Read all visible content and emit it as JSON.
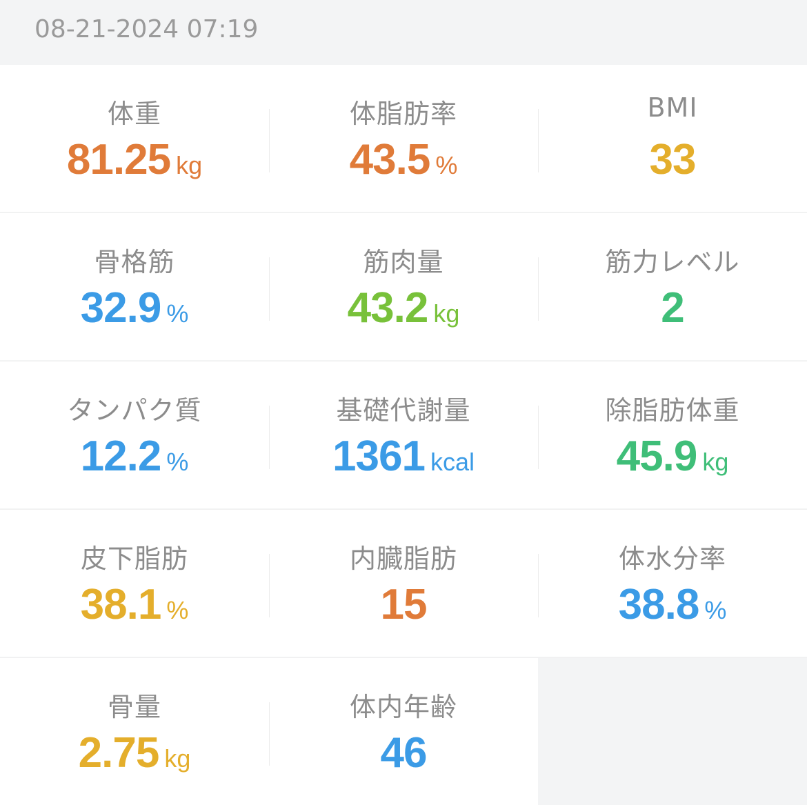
{
  "header": {
    "timestamp": "08-21-2024 07:19"
  },
  "colors": {
    "orange": "#e07b39",
    "yellow": "#e4ae2b",
    "blue": "#3b9be6",
    "light_green": "#78c13a",
    "green": "#3fbe78",
    "label_gray": "#8c8c8c",
    "background": "#f3f4f5"
  },
  "metrics": [
    {
      "label": "体重",
      "value": "81.25",
      "unit": "kg",
      "color": "#e07b39"
    },
    {
      "label": "体脂肪率",
      "value": "43.5",
      "unit": "%",
      "color": "#e07b39"
    },
    {
      "label": "BMI",
      "value": "33",
      "unit": "",
      "color": "#e4ae2b"
    },
    {
      "label": "骨格筋",
      "value": "32.9",
      "unit": "%",
      "color": "#3b9be6"
    },
    {
      "label": "筋肉量",
      "value": "43.2",
      "unit": "kg",
      "color": "#78c13a"
    },
    {
      "label": "筋力レベル",
      "value": "2",
      "unit": "",
      "color": "#3fbe78"
    },
    {
      "label": "タンパク質",
      "value": "12.2",
      "unit": "%",
      "color": "#3b9be6"
    },
    {
      "label": "基礎代謝量",
      "value": "1361",
      "unit": "kcal",
      "color": "#3b9be6"
    },
    {
      "label": "除脂肪体重",
      "value": "45.9",
      "unit": "kg",
      "color": "#3fbe78"
    },
    {
      "label": "皮下脂肪",
      "value": "38.1",
      "unit": "%",
      "color": "#e4ae2b"
    },
    {
      "label": "内臓脂肪",
      "value": "15",
      "unit": "",
      "color": "#e07b39"
    },
    {
      "label": "体水分率",
      "value": "38.8",
      "unit": "%",
      "color": "#3b9be6"
    },
    {
      "label": "骨量",
      "value": "2.75",
      "unit": "kg",
      "color": "#e4ae2b"
    },
    {
      "label": "体内年齢",
      "value": "46",
      "unit": "",
      "color": "#3b9be6"
    }
  ]
}
